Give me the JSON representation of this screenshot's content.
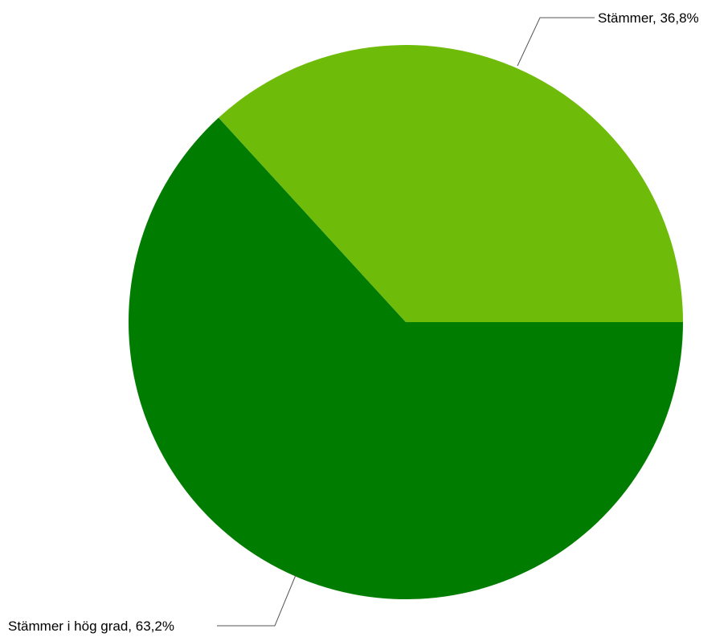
{
  "chart_data": {
    "type": "pie",
    "slices": [
      {
        "label": "Stämmer i hög grad, 63,2%",
        "value": 63.2,
        "color": "#007d00"
      },
      {
        "label": "Stämmer, 36,8%",
        "value": 36.8,
        "color": "#6ebb0a"
      }
    ],
    "start_angle_deg": 0,
    "direction": "clockwise",
    "legend": "none"
  }
}
